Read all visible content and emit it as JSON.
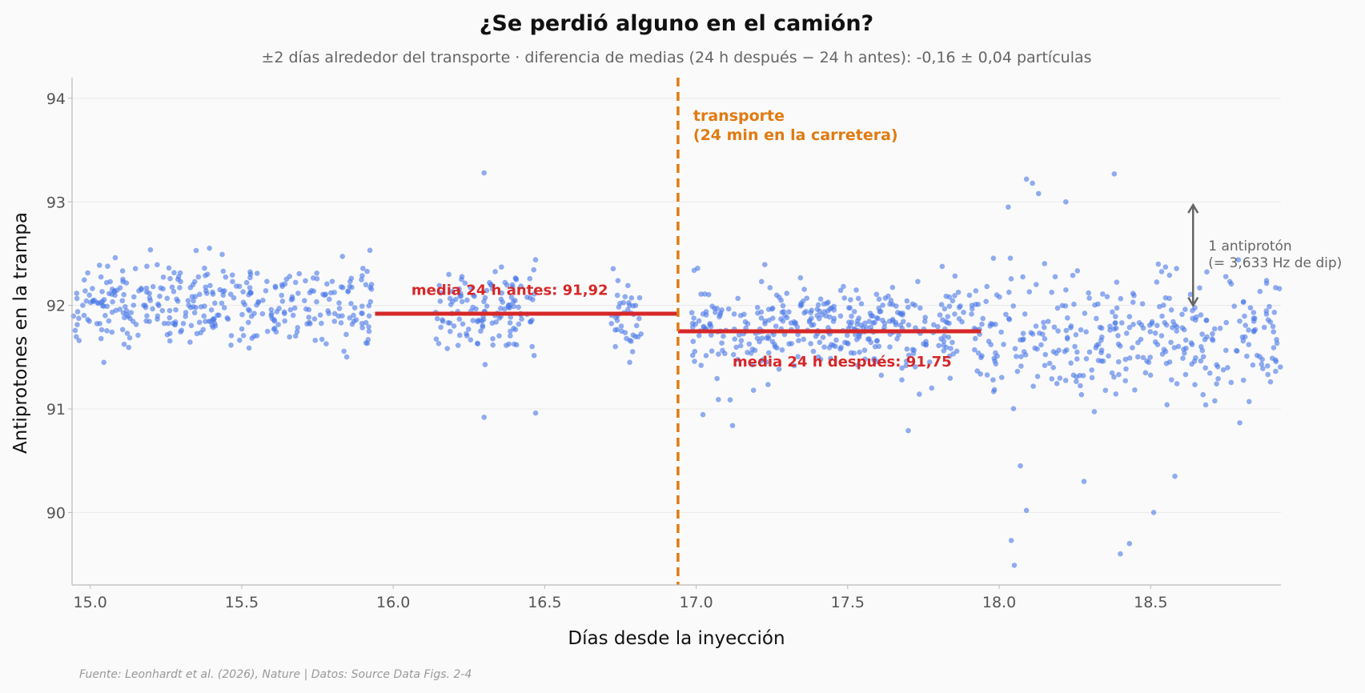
{
  "chart_data": {
    "type": "scatter",
    "title": "¿Se perdió alguno en el camión?",
    "subtitle": "±2 días alrededor del transporte · diferencia de medias (24 h después − 24 h antes): -0,16 ± 0,04 partículas",
    "xlabel": "Días desde la inyección",
    "ylabel": "Antiprotones en la trampa",
    "xlim": [
      14.94,
      18.93
    ],
    "ylim": [
      89.3,
      94.2
    ],
    "x_ticks": [
      15.0,
      15.5,
      16.0,
      16.5,
      17.0,
      17.5,
      18.0,
      18.5
    ],
    "x_tick_labels": [
      "15.0",
      "15.5",
      "16.0",
      "16.5",
      "17.0",
      "17.5",
      "18.0",
      "18.5"
    ],
    "y_ticks": [
      90,
      91,
      92,
      93,
      94
    ],
    "y_tick_labels": [
      "90",
      "91",
      "92",
      "93",
      "94"
    ],
    "grid": "horizontal",
    "point_color": "#4a78e8",
    "series": [
      {
        "segments": [
          {
            "x_start": 14.94,
            "x_end": 15.94,
            "center": 92.0,
            "spread": 0.32,
            "n": 360
          },
          {
            "x_start": 16.14,
            "x_end": 16.47,
            "center": 91.95,
            "spread": 0.38,
            "n": 130
          },
          {
            "x_start": 16.72,
            "x_end": 16.82,
            "center": 91.9,
            "spread": 0.38,
            "n": 40
          },
          {
            "x_start": 16.98,
            "x_end": 17.95,
            "center": 91.78,
            "spread": 0.36,
            "n": 390
          },
          {
            "x_start": 17.95,
            "x_end": 18.93,
            "center": 91.68,
            "spread": 0.52,
            "n": 330
          }
        ],
        "outliers": [
          {
            "x": 16.3,
            "y": 93.28
          },
          {
            "x": 18.09,
            "y": 93.22
          },
          {
            "x": 18.11,
            "y": 93.18
          },
          {
            "x": 18.13,
            "y": 93.08
          },
          {
            "x": 18.22,
            "y": 93.0
          },
          {
            "x": 18.38,
            "y": 93.27
          },
          {
            "x": 18.03,
            "y": 92.95
          },
          {
            "x": 18.04,
            "y": 89.73
          },
          {
            "x": 18.05,
            "y": 89.49
          },
          {
            "x": 18.09,
            "y": 90.02
          },
          {
            "x": 18.07,
            "y": 90.45
          },
          {
            "x": 18.28,
            "y": 90.3
          },
          {
            "x": 18.4,
            "y": 89.6
          },
          {
            "x": 18.43,
            "y": 89.7
          },
          {
            "x": 18.51,
            "y": 90.0
          },
          {
            "x": 18.58,
            "y": 90.35
          },
          {
            "x": 16.3,
            "y": 90.92
          },
          {
            "x": 16.47,
            "y": 90.96
          },
          {
            "x": 17.12,
            "y": 90.84
          },
          {
            "x": 17.7,
            "y": 90.79
          }
        ]
      }
    ],
    "mean_lines": [
      {
        "x_start": 15.94,
        "x_end": 16.94,
        "y": 91.92,
        "color": "#d62728",
        "label": "media 24 h antes: 91,92",
        "label_x": 16.06,
        "label_y": 92.1
      },
      {
        "x_start": 16.94,
        "x_end": 17.94,
        "y": 91.75,
        "color": "#d62728",
        "label": "media 24 h después: 91,75",
        "label_x": 17.12,
        "label_y": 91.41
      }
    ],
    "event": {
      "x": 16.94,
      "color": "#e07b12",
      "label_line1": "transporte",
      "label_line2": "(24 min en la carretera)"
    },
    "arrow": {
      "x": 18.64,
      "y_from": 92.0,
      "y_to": 92.97,
      "label_line1": "1 antiprotón",
      "label_line2": "(= 3,633 Hz de dip)"
    }
  },
  "source": "Fuente: Leonhardt et al. (2026), Nature | Datos: Source Data Figs. 2-4"
}
